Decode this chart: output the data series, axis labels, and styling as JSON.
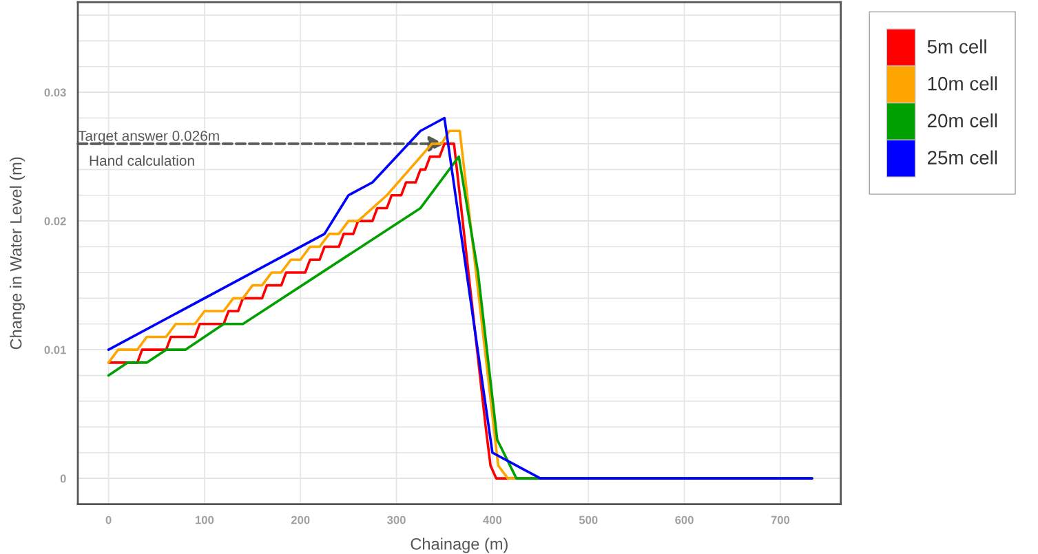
{
  "chart_data": {
    "type": "line",
    "xlabel": "Chainage (m)",
    "ylabel": "Change in Water Level (m)",
    "xlim": [
      -32,
      763
    ],
    "ylim": [
      -0.002,
      0.037
    ],
    "xticks": [
      0,
      100,
      200,
      300,
      400,
      500,
      600,
      700
    ],
    "yticks": [
      0,
      {
        "value": 0.002,
        "label": null
      },
      {
        "value": 0.004,
        "label": null
      },
      {
        "value": 0.006,
        "label": null
      },
      {
        "value": 0.008,
        "label": null
      },
      0.01,
      {
        "value": 0.012,
        "label": null
      },
      {
        "value": 0.014,
        "label": null
      },
      {
        "value": 0.016,
        "label": null
      },
      {
        "value": 0.018,
        "label": null
      },
      0.02,
      {
        "value": 0.022,
        "label": null
      },
      {
        "value": 0.024,
        "label": null
      },
      {
        "value": 0.026,
        "label": null
      },
      {
        "value": 0.028,
        "label": null
      },
      0.03,
      {
        "value": 0.032,
        "label": null
      },
      {
        "value": 0.034,
        "label": null
      },
      {
        "value": 0.036,
        "label": null
      }
    ],
    "grid": true,
    "legend": "top right",
    "marker": "none",
    "line_style": "solid",
    "series": [
      {
        "name": "5m cell",
        "color": "#ff0000",
        "x": [
          0,
          30,
          35,
          60,
          65,
          90,
          95,
          120,
          125,
          135,
          140,
          160,
          165,
          180,
          185,
          205,
          210,
          220,
          225,
          240,
          245,
          255,
          260,
          275,
          280,
          290,
          295,
          305,
          310,
          320,
          325,
          330,
          335,
          345,
          350,
          360,
          393,
          398,
          404,
          733
        ],
        "values": [
          0.009,
          0.009,
          0.01,
          0.01,
          0.011,
          0.011,
          0.012,
          0.012,
          0.013,
          0.013,
          0.014,
          0.014,
          0.015,
          0.015,
          0.016,
          0.016,
          0.017,
          0.017,
          0.018,
          0.018,
          0.019,
          0.019,
          0.02,
          0.02,
          0.021,
          0.021,
          0.022,
          0.022,
          0.023,
          0.023,
          0.024,
          0.024,
          0.025,
          0.025,
          0.026,
          0.026,
          0.004,
          0.001,
          0,
          0
        ]
      },
      {
        "name": "10m cell",
        "color": "#ffa500",
        "x": [
          0,
          10,
          30,
          40,
          60,
          70,
          90,
          100,
          120,
          130,
          140,
          150,
          160,
          170,
          180,
          190,
          200,
          210,
          220,
          230,
          240,
          250,
          260,
          290,
          337,
          347,
          355,
          366,
          406,
          416,
          733
        ],
        "values": [
          0.009,
          0.01,
          0.01,
          0.011,
          0.011,
          0.012,
          0.012,
          0.013,
          0.013,
          0.014,
          0.014,
          0.015,
          0.015,
          0.016,
          0.016,
          0.017,
          0.017,
          0.018,
          0.018,
          0.019,
          0.019,
          0.02,
          0.02,
          0.022,
          0.026,
          0.026,
          0.027,
          0.027,
          0.001,
          0,
          0
        ]
      },
      {
        "name": "20m cell",
        "color": "#00a000",
        "x": [
          0,
          20,
          40,
          60,
          80,
          120,
          140,
          325,
          365,
          385,
          405,
          425,
          733
        ],
        "values": [
          0.008,
          0.009,
          0.009,
          0.01,
          0.01,
          0.012,
          0.012,
          0.021,
          0.025,
          0.016,
          0.003,
          0,
          0
        ]
      },
      {
        "name": "25m cell",
        "color": "#0000ff",
        "x": [
          0,
          225,
          250,
          275,
          325,
          350,
          400,
          450,
          733
        ],
        "values": [
          0.01,
          0.019,
          0.022,
          0.023,
          0.027,
          0.028,
          0.002,
          0,
          0
        ]
      }
    ],
    "annotations": [
      {
        "text": "Target answer 0.026m",
        "x": 350,
        "y": 0.026
      },
      "Hand calculation"
    ]
  }
}
